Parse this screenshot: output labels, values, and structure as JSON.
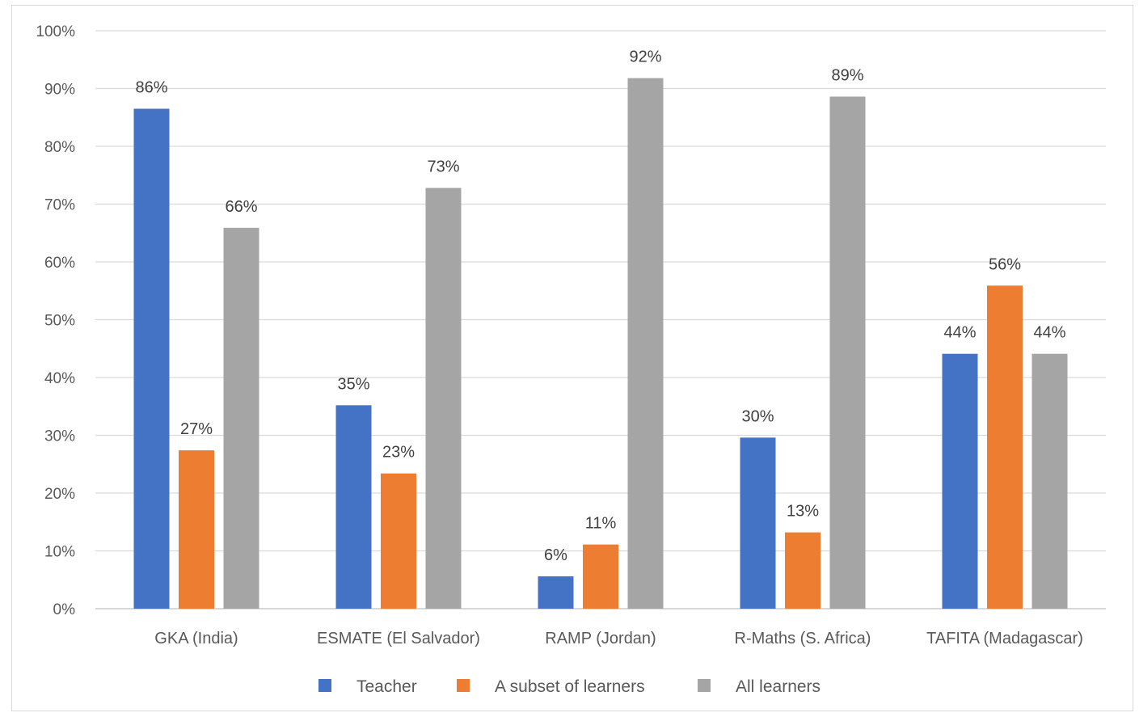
{
  "chart_data": {
    "type": "bar",
    "title": "",
    "xlabel": "",
    "ylabel": "",
    "ylim": [
      0,
      100
    ],
    "y_ticks": [
      0,
      10,
      20,
      30,
      40,
      50,
      60,
      70,
      80,
      90,
      100
    ],
    "y_tick_format": "percent",
    "grid": true,
    "legend_position": "bottom",
    "categories": [
      "GKA (India)",
      "ESMATE (El Salvador)",
      "RAMP (Jordan)",
      "R-Maths (S. Africa)",
      "TAFITA (Madagascar)"
    ],
    "series": [
      {
        "name": "Teacher",
        "color": "#4472c4",
        "values": [
          86.5,
          35.2,
          5.6,
          29.6,
          44.1
        ],
        "labels": [
          "86%",
          "35%",
          "6%",
          "30%",
          "44%"
        ]
      },
      {
        "name": "A subset of learners",
        "color": "#ed7d31",
        "values": [
          27.4,
          23.4,
          11.1,
          13.2,
          55.9
        ],
        "labels": [
          "27%",
          "23%",
          "11%",
          "13%",
          "56%"
        ]
      },
      {
        "name": "All learners",
        "color": "#a5a5a5",
        "values": [
          65.9,
          72.8,
          91.8,
          88.6,
          44.1
        ],
        "labels": [
          "66%",
          "73%",
          "92%",
          "89%",
          "44%"
        ]
      }
    ]
  }
}
